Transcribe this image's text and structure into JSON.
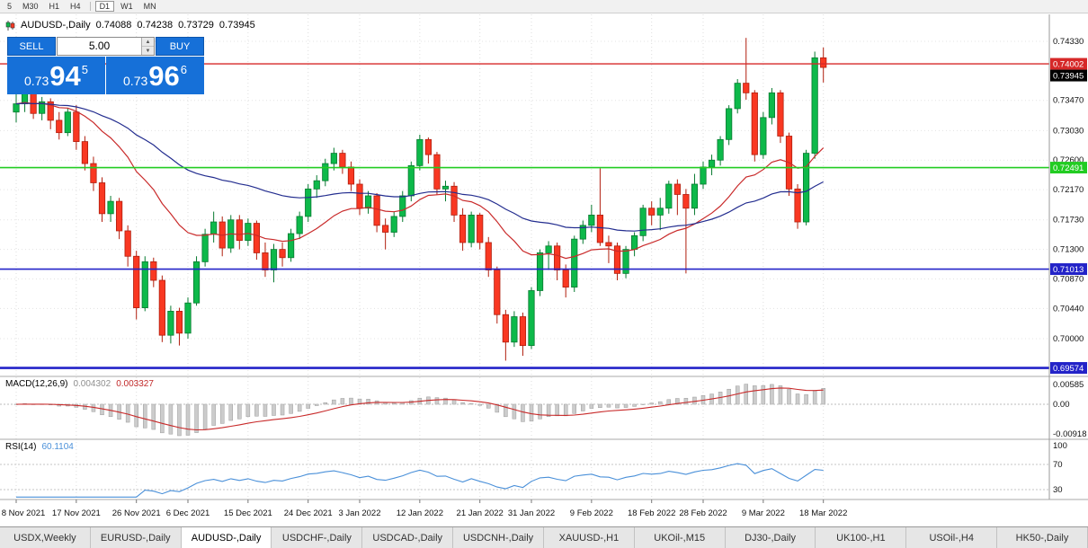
{
  "toolbar": {
    "timeframes": [
      {
        "label": "5",
        "active": false,
        "divider_after": false
      },
      {
        "label": "M30",
        "active": false,
        "divider_after": false
      },
      {
        "label": "H1",
        "active": false,
        "divider_after": false
      },
      {
        "label": "H4",
        "active": false,
        "divider_after": true
      },
      {
        "label": "D1",
        "active": true,
        "divider_after": false
      },
      {
        "label": "W1",
        "active": false,
        "divider_after": false
      },
      {
        "label": "MN",
        "active": false,
        "divider_after": false
      }
    ]
  },
  "chart_header": {
    "symbol": "AUDUSD-,Daily",
    "open": "0.74088",
    "high": "0.74238",
    "low": "0.73729",
    "close": "0.73945"
  },
  "trade_panel": {
    "sell_label": "SELL",
    "buy_label": "BUY",
    "volume": "5.00",
    "sell_price": {
      "base": "0.73",
      "big": "94",
      "sup": "5"
    },
    "buy_price": {
      "base": "0.73",
      "big": "96",
      "sup": "6"
    },
    "icons": {
      "spin_up": "▲",
      "spin_down": "▼"
    }
  },
  "chart_data": {
    "type": "candlestick",
    "title": "AUDUSD-,Daily",
    "price_axis_labels": [
      "0.74330",
      "0.73470",
      "0.73030",
      "0.72600",
      "0.72170",
      "0.71730",
      "0.71300",
      "0.70870",
      "0.70440",
      "0.70000"
    ],
    "current_price_label": "0.73945",
    "hlines": [
      {
        "price": 0.74002,
        "label": "0.74002",
        "color": "#d62828",
        "width": 1.3
      },
      {
        "price": 0.72491,
        "label": "0.72491",
        "color": "#22cc22",
        "width": 1.6
      },
      {
        "price": 0.71013,
        "label": "0.71013",
        "color": "#2323c8",
        "width": 1.6
      },
      {
        "price": 0.69574,
        "label": "0.69574",
        "color": "#2323c8",
        "width": 2.6
      }
    ],
    "ma_fast_period": 20,
    "ma_slow_period": 52,
    "colors": {
      "up": "#0db94a",
      "up_edge": "#077a30",
      "down": "#f93822",
      "down_edge": "#b01e0e",
      "ma_fast": "#c92a2a",
      "ma_slow": "#232d8f",
      "macd_hist": "#cccccc",
      "macd_signal": "#c82a2a",
      "rsi": "#4a90d9"
    },
    "macd": {
      "label": "MACD(12,26,9)",
      "value_main": "0.004302",
      "value_signal": "0.003327",
      "axis_labels": [
        "0.00585",
        "0.00",
        "-0.00918"
      ],
      "fast": 12,
      "slow": 26,
      "signal": 9
    },
    "rsi": {
      "label": "RSI(14)",
      "value_text": "60.1104",
      "period": 14,
      "levels": [
        70,
        30
      ],
      "axis_labels": [
        100,
        70,
        30
      ]
    },
    "date_ticks": [
      {
        "label": "8 Nov 2021",
        "index": 0
      },
      {
        "label": "17 Nov 2021",
        "index": 7
      },
      {
        "label": "26 Nov 2021",
        "index": 14
      },
      {
        "label": "6 Dec 2021",
        "index": 20
      },
      {
        "label": "15 Dec 2021",
        "index": 27
      },
      {
        "label": "24 Dec 2021",
        "index": 34
      },
      {
        "label": "3 Jan 2022",
        "index": 40
      },
      {
        "label": "12 Jan 2022",
        "index": 47
      },
      {
        "label": "21 Jan 2022",
        "index": 54
      },
      {
        "label": "31 Jan 2022",
        "index": 60
      },
      {
        "label": "9 Feb 2022",
        "index": 67
      },
      {
        "label": "18 Feb 2022",
        "index": 74
      },
      {
        "label": "28 Feb 2022",
        "index": 80
      },
      {
        "label": "9 Mar 2022",
        "index": 87
      },
      {
        "label": "18 Mar 2022",
        "index": 94
      }
    ],
    "candles": [
      [
        0.733,
        0.737,
        0.7315,
        0.7342
      ],
      [
        0.7342,
        0.7368,
        0.733,
        0.7362
      ],
      [
        0.7362,
        0.737,
        0.732,
        0.7328
      ],
      [
        0.7328,
        0.7352,
        0.7318,
        0.7345
      ],
      [
        0.7345,
        0.735,
        0.7305,
        0.7318
      ],
      [
        0.7318,
        0.733,
        0.729,
        0.73
      ],
      [
        0.73,
        0.7335,
        0.7295,
        0.733
      ],
      [
        0.733,
        0.734,
        0.7275,
        0.7287
      ],
      [
        0.7287,
        0.7295,
        0.7245,
        0.7255
      ],
      [
        0.7255,
        0.7265,
        0.7215,
        0.7227
      ],
      [
        0.7227,
        0.7235,
        0.717,
        0.7182
      ],
      [
        0.7182,
        0.7208,
        0.717,
        0.72
      ],
      [
        0.72,
        0.7205,
        0.7145,
        0.7157
      ],
      [
        0.7157,
        0.7165,
        0.7105,
        0.712
      ],
      [
        0.712,
        0.7128,
        0.7028,
        0.7045
      ],
      [
        0.7045,
        0.712,
        0.704,
        0.7112
      ],
      [
        0.7112,
        0.7118,
        0.7075,
        0.7085
      ],
      [
        0.7085,
        0.7092,
        0.6995,
        0.7005
      ],
      [
        0.7005,
        0.7048,
        0.6993,
        0.704
      ],
      [
        0.704,
        0.7045,
        0.699,
        0.7008
      ],
      [
        0.7008,
        0.706,
        0.7,
        0.7052
      ],
      [
        0.7052,
        0.712,
        0.7048,
        0.7112
      ],
      [
        0.7112,
        0.716,
        0.7105,
        0.7152
      ],
      [
        0.7152,
        0.7185,
        0.714,
        0.717
      ],
      [
        0.717,
        0.7178,
        0.712,
        0.7132
      ],
      [
        0.7132,
        0.718,
        0.7125,
        0.7173
      ],
      [
        0.7173,
        0.718,
        0.713,
        0.7143
      ],
      [
        0.7143,
        0.7175,
        0.7135,
        0.7168
      ],
      [
        0.7168,
        0.7172,
        0.7115,
        0.7125
      ],
      [
        0.7125,
        0.714,
        0.709,
        0.71
      ],
      [
        0.71,
        0.7138,
        0.7082,
        0.713
      ],
      [
        0.713,
        0.714,
        0.7105,
        0.7118
      ],
      [
        0.7118,
        0.716,
        0.7112,
        0.7153
      ],
      [
        0.7153,
        0.7185,
        0.7145,
        0.7178
      ],
      [
        0.7178,
        0.7225,
        0.717,
        0.7218
      ],
      [
        0.7218,
        0.7238,
        0.7205,
        0.723
      ],
      [
        0.723,
        0.7262,
        0.7222,
        0.7255
      ],
      [
        0.7255,
        0.7278,
        0.7245,
        0.727
      ],
      [
        0.727,
        0.7275,
        0.724,
        0.725
      ],
      [
        0.725,
        0.7258,
        0.7215,
        0.7225
      ],
      [
        0.7225,
        0.7232,
        0.718,
        0.719
      ],
      [
        0.719,
        0.7215,
        0.7182,
        0.7208
      ],
      [
        0.7208,
        0.7212,
        0.7155,
        0.7165
      ],
      [
        0.7165,
        0.7175,
        0.713,
        0.7155
      ],
      [
        0.7155,
        0.7185,
        0.7148,
        0.7178
      ],
      [
        0.7178,
        0.7215,
        0.717,
        0.7208
      ],
      [
        0.7208,
        0.7258,
        0.72,
        0.7252
      ],
      [
        0.7252,
        0.7297,
        0.7245,
        0.729
      ],
      [
        0.729,
        0.7293,
        0.7255,
        0.7268
      ],
      [
        0.7268,
        0.7272,
        0.721,
        0.7218
      ],
      [
        0.7218,
        0.723,
        0.72,
        0.7222
      ],
      [
        0.7222,
        0.7228,
        0.717,
        0.718
      ],
      [
        0.718,
        0.719,
        0.7128,
        0.714
      ],
      [
        0.714,
        0.7185,
        0.7133,
        0.718
      ],
      [
        0.718,
        0.7183,
        0.713,
        0.714
      ],
      [
        0.714,
        0.7148,
        0.709,
        0.71
      ],
      [
        0.71,
        0.7105,
        0.7022,
        0.7035
      ],
      [
        0.7035,
        0.7042,
        0.6968,
        0.6995
      ],
      [
        0.6995,
        0.704,
        0.6988,
        0.7032
      ],
      [
        0.7032,
        0.7038,
        0.6975,
        0.699
      ],
      [
        0.699,
        0.7075,
        0.6985,
        0.707
      ],
      [
        0.707,
        0.713,
        0.7062,
        0.7125
      ],
      [
        0.7125,
        0.7142,
        0.71,
        0.7135
      ],
      [
        0.7135,
        0.714,
        0.7085,
        0.71
      ],
      [
        0.71,
        0.7108,
        0.706,
        0.7075
      ],
      [
        0.7075,
        0.715,
        0.7068,
        0.7145
      ],
      [
        0.7145,
        0.7172,
        0.7138,
        0.7165
      ],
      [
        0.7165,
        0.7195,
        0.7155,
        0.718
      ],
      [
        0.718,
        0.7248,
        0.7135,
        0.714
      ],
      [
        0.714,
        0.715,
        0.711,
        0.7135
      ],
      [
        0.7135,
        0.714,
        0.7085,
        0.7095
      ],
      [
        0.7095,
        0.7135,
        0.7088,
        0.713
      ],
      [
        0.713,
        0.7155,
        0.712,
        0.715
      ],
      [
        0.715,
        0.7195,
        0.7142,
        0.719
      ],
      [
        0.719,
        0.72,
        0.7165,
        0.718
      ],
      [
        0.718,
        0.7205,
        0.7158,
        0.719
      ],
      [
        0.719,
        0.723,
        0.7182,
        0.7225
      ],
      [
        0.7225,
        0.7232,
        0.718,
        0.721
      ],
      [
        0.721,
        0.7218,
        0.7095,
        0.719
      ],
      [
        0.719,
        0.724,
        0.718,
        0.7225
      ],
      [
        0.7225,
        0.7258,
        0.7218,
        0.725
      ],
      [
        0.725,
        0.7268,
        0.7238,
        0.726
      ],
      [
        0.726,
        0.7295,
        0.7252,
        0.729
      ],
      [
        0.729,
        0.734,
        0.7282,
        0.7335
      ],
      [
        0.7335,
        0.7378,
        0.7328,
        0.7372
      ],
      [
        0.7372,
        0.7438,
        0.7348,
        0.7358
      ],
      [
        0.7358,
        0.7362,
        0.7258,
        0.7268
      ],
      [
        0.7268,
        0.733,
        0.7262,
        0.7322
      ],
      [
        0.7322,
        0.7365,
        0.7312,
        0.7358
      ],
      [
        0.7358,
        0.7362,
        0.7285,
        0.7295
      ],
      [
        0.7295,
        0.73,
        0.7208,
        0.7218
      ],
      [
        0.7218,
        0.7225,
        0.716,
        0.717
      ],
      [
        0.717,
        0.7275,
        0.7165,
        0.727
      ],
      [
        0.727,
        0.7418,
        0.7262,
        0.7409
      ],
      [
        0.7409,
        0.7424,
        0.7373,
        0.7395
      ]
    ]
  },
  "bottom_tabs": [
    {
      "label": "USDX,Weekly",
      "active": false
    },
    {
      "label": "EURUSD-,Daily",
      "active": false
    },
    {
      "label": "AUDUSD-,Daily",
      "active": true
    },
    {
      "label": "USDCHF-,Daily",
      "active": false
    },
    {
      "label": "USDCAD-,Daily",
      "active": false
    },
    {
      "label": "USDCNH-,Daily",
      "active": false
    },
    {
      "label": "XAUUSD-,H1",
      "active": false
    },
    {
      "label": "UKOil-,M15",
      "active": false
    },
    {
      "label": "DJ30-,Daily",
      "active": false
    },
    {
      "label": "UK100-,H1",
      "active": false
    },
    {
      "label": "USOil-,H4",
      "active": false
    },
    {
      "label": "HK50-,Daily",
      "active": false
    }
  ]
}
